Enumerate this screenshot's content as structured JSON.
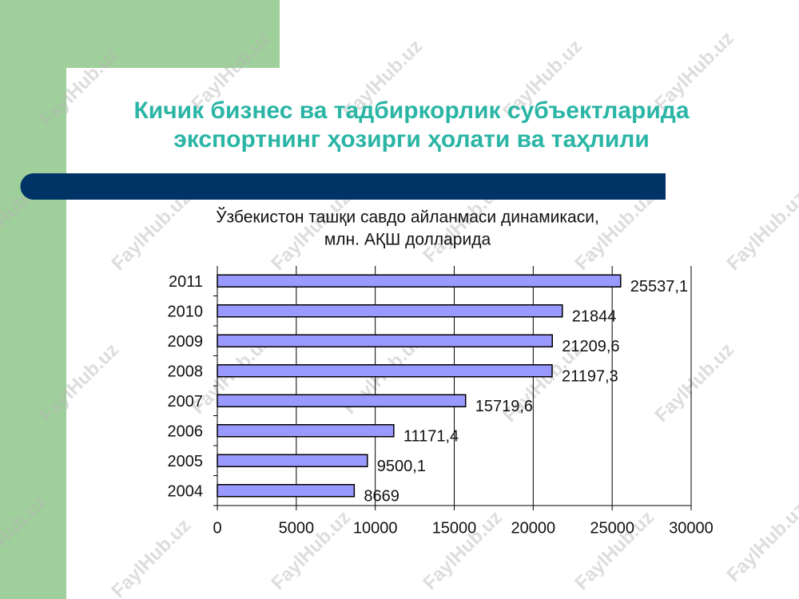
{
  "slide": {
    "title": [
      "Кичик бизнес ва тадбиркорлик субъектларида",
      "экспортнинг ҳозирги ҳолати ва таҳлили"
    ],
    "watermark": "FaylHub.uz"
  },
  "chart_data": {
    "type": "barh",
    "title": [
      "Ўзбекистон ташқи савдо айланмаси динамикаси,",
      "млн. АҚШ долларида"
    ],
    "categories": [
      "2004",
      "2005",
      "2006",
      "2007",
      "2008",
      "2009",
      "2010",
      "2011"
    ],
    "values": [
      8669,
      9500.1,
      11171.4,
      15719.6,
      21197.3,
      21209.6,
      21844,
      25537.1
    ],
    "value_labels": [
      "8669",
      "9500,1",
      "11171,4",
      "15719,6",
      "21197,3",
      "21209,6",
      "21844",
      "25537,1"
    ],
    "color": "#9999ff",
    "xlim": [
      0,
      30000
    ],
    "xticks": [
      0,
      5000,
      10000,
      15000,
      20000,
      25000,
      30000
    ],
    "grid": true
  }
}
